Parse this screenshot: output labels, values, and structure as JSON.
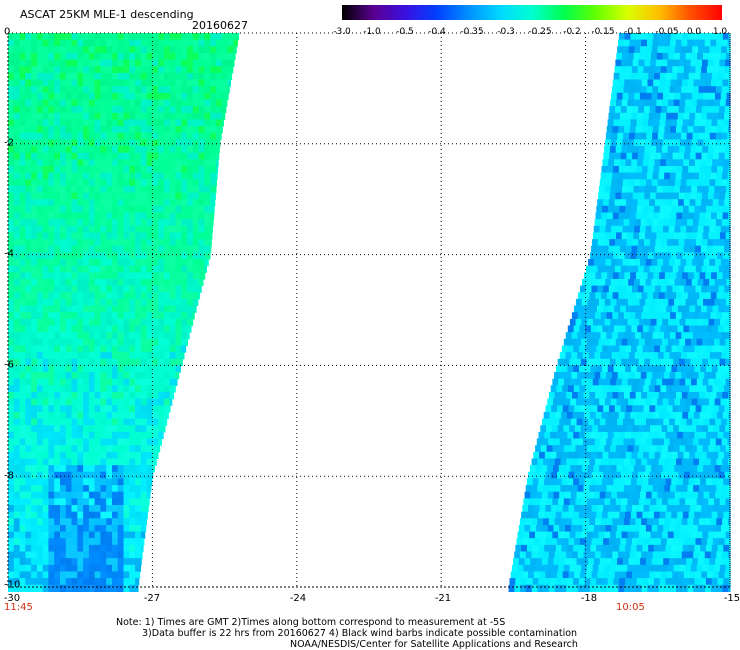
{
  "title": "ASCAT 25KM MLE-1 descending",
  "date": "20160627",
  "colorbar": {
    "labels": [
      "-3.0",
      "-1.0",
      "-0.5",
      "-0.4",
      "-0.35",
      "-0.3",
      "-0.25",
      "-0.2",
      "-0.15",
      "-0.1",
      "-0.05",
      "0.0",
      "1.0"
    ],
    "colors": [
      "#000000",
      "#5a0090",
      "#3a10e0",
      "#0040ff",
      "#0090ff",
      "#00d8ff",
      "#00ffd0",
      "#00ff50",
      "#60ff00",
      "#d8ff00",
      "#ffc000",
      "#ff5000",
      "#ff0000"
    ]
  },
  "axes": {
    "x_ticks": [
      "-30",
      "-27",
      "-24",
      "-21",
      "-18",
      "-15"
    ],
    "y_ticks": [
      "0",
      "-2",
      "-4",
      "-6",
      "-8",
      "-10"
    ]
  },
  "times": {
    "left": "11:45",
    "right": "10:05"
  },
  "notes": [
    "Note: 1) Times are GMT 2)Times along bottom correspond to measurement at -5S",
    "3)Data buffer is 22 hrs from 20160627 4) Black wind barbs indicate possible contamination",
    "NOAA/NESDIS/Center for Satellite Applications and Research"
  ],
  "chart_data": {
    "type": "heatmap",
    "title": "ASCAT 25KM MLE-1 descending",
    "xlim": [
      -30,
      -15
    ],
    "ylim": [
      -10,
      0
    ],
    "grid": true,
    "legend": "colorbar top-right",
    "swaths": [
      {
        "name": "west",
        "lon_west": -30,
        "lon_east_at_lat": [
          [
            0,
            -25.2
          ],
          [
            -2,
            -25.6
          ],
          [
            -4,
            -25.8
          ],
          [
            -6,
            -26.4
          ],
          [
            -8,
            -27.0
          ],
          [
            -10,
            -27.3
          ]
        ],
        "typical_value_north": -0.2,
        "typical_value_south": -0.3
      },
      {
        "name": "east",
        "lon_east": -15,
        "lon_west_at_lat": [
          [
            0,
            -17.3
          ],
          [
            -2,
            -17.6
          ],
          [
            -4,
            -17.9
          ],
          [
            -6,
            -18.6
          ],
          [
            -8,
            -19.2
          ],
          [
            -10,
            -19.6
          ]
        ],
        "typical_value": -0.3
      }
    ]
  }
}
